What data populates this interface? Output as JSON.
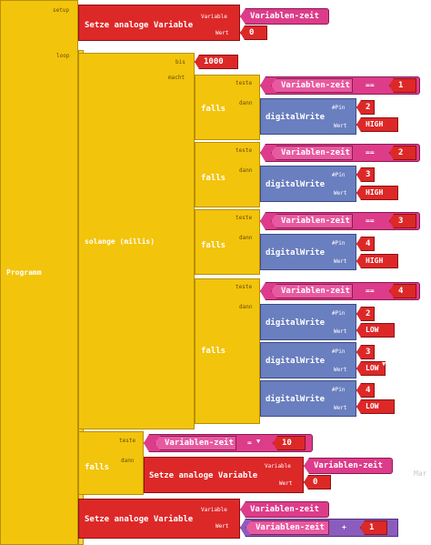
{
  "program": {
    "label": "Programm",
    "setup_label": "setup",
    "loop_label": "loop"
  },
  "setup_block": {
    "title": "Setze analoge Variable",
    "variable_label": "Variable",
    "value_label": "Wert",
    "variable_name": "Variablen-zeit",
    "value": "0"
  },
  "while_block": {
    "title": "solange (millis)",
    "limit_label": "bis",
    "limit_value": "1000",
    "do_label": "macht"
  },
  "if_blocks": [
    {
      "if_label": "falls",
      "test_label": "teste",
      "then_label": "dann",
      "variable": "Variablen-zeit",
      "op": "==",
      "compare": "1",
      "writes": [
        {
          "title": "digitalWrite",
          "pin_label": "#Pin",
          "pin": "2",
          "value_label": "Wert",
          "value": "HIGH"
        }
      ]
    },
    {
      "if_label": "falls",
      "test_label": "teste",
      "then_label": "dann",
      "variable": "Variablen-zeit",
      "op": "==",
      "compare": "2",
      "writes": [
        {
          "title": "digitalWrite",
          "pin_label": "#Pin",
          "pin": "3",
          "value_label": "Wert",
          "value": "HIGH"
        }
      ]
    },
    {
      "if_label": "falls",
      "test_label": "teste",
      "then_label": "dann",
      "variable": "Variablen-zeit",
      "op": "==",
      "compare": "3",
      "writes": [
        {
          "title": "digitalWrite",
          "pin_label": "#Pin",
          "pin": "4",
          "value_label": "Wert",
          "value": "HIGH"
        }
      ]
    },
    {
      "if_label": "falls",
      "test_label": "teste",
      "then_label": "dann",
      "variable": "Variablen-zeit",
      "op": "==",
      "compare": "4",
      "writes": [
        {
          "title": "digitalWrite",
          "pin_label": "#Pin",
          "pin": "2",
          "value_label": "Wert",
          "value": "LOW"
        },
        {
          "title": "digitalWrite",
          "pin_label": "#Pin",
          "pin": "3",
          "value_label": "Wert",
          "value": "LOW"
        },
        {
          "title": "digitalWrite",
          "pin_label": "#Pin",
          "pin": "4",
          "value_label": "Wert",
          "value": "LOW"
        }
      ]
    }
  ],
  "reset_if": {
    "if_label": "falls",
    "test_label": "teste",
    "then_label": "dann",
    "variable": "Variablen-zeit",
    "op": "=",
    "compare": "10",
    "set_title": "Setze analoge Variable",
    "variable_label": "Variable",
    "value_label": "Wert",
    "set_variable": "Variablen-zeit",
    "set_value": "0"
  },
  "increment_block": {
    "title": "Setze analoge Variable",
    "variable_label": "Variable",
    "value_label": "Wert",
    "variable_name": "Variablen-zeit",
    "expr_variable": "Variablen-zeit",
    "expr_op": "+",
    "expr_value": "1"
  },
  "truncated_edge_text": "Mar",
  "colors": {
    "control": "#f2c40c",
    "variable": "#dd3c8a",
    "set": "#dd2828",
    "io": "#6a7fbf"
  }
}
